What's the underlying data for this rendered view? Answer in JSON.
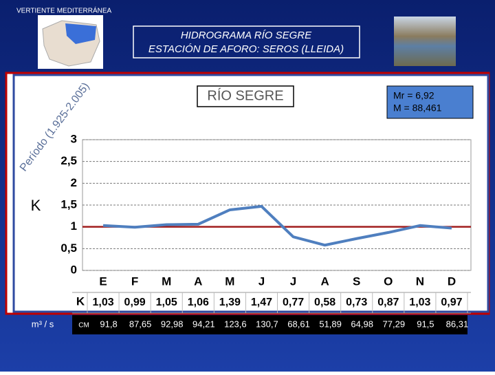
{
  "header": {
    "region": "VERTIENTE MEDITERRÁNEA",
    "title_line1": "HIDROGRAMA  RÍO  SEGRE",
    "title_line2": "ESTACIÓN DE AFORO:  SEROS (LLEIDA)"
  },
  "chart_data": {
    "type": "line",
    "title": "RÍO SEGRE",
    "period": "Período (1.925-2.005)",
    "stats": [
      "Mr = 6,92",
      "M = 88,461"
    ],
    "y_label": "K",
    "categories": [
      "E",
      "F",
      "M",
      "A",
      "M",
      "J",
      "J",
      "A",
      "S",
      "O",
      "N",
      "D"
    ],
    "series": [
      {
        "name": "K",
        "color": "#4f7fbf",
        "values": [
          1.03,
          0.99,
          1.05,
          1.06,
          1.39,
          1.47,
          0.77,
          0.58,
          0.73,
          0.87,
          1.03,
          0.97
        ],
        "value_labels": [
          "1,03",
          "0,99",
          "1,05",
          "1,06",
          "1,39",
          "1,47",
          "0,77",
          "0,58",
          "0,73",
          "0,87",
          "1,03",
          "0,97"
        ]
      }
    ],
    "reference_line": {
      "value": 1,
      "color": "#a01c1c"
    },
    "ylim": [
      0,
      3
    ],
    "yticks": [
      0,
      {
        "value": 0.5,
        "label": "0,5"
      },
      1,
      {
        "value": 1.5,
        "label": "1,5"
      },
      2,
      {
        "value": 2.5,
        "label": "2,5"
      },
      3
    ],
    "grid": true,
    "flow": {
      "label": "m³ / s",
      "unit": "CM",
      "values": [
        "91,8",
        "87,65",
        "92,98",
        "94,21",
        "123,6",
        "130,7",
        "68,61",
        "51,89",
        "64,98",
        "77,29",
        "91,5",
        "86,31"
      ]
    }
  }
}
